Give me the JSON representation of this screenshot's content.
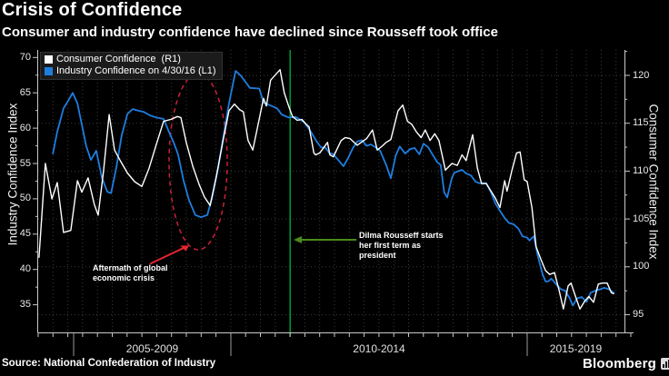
{
  "header": {
    "title": "Crisis of Confidence",
    "subtitle": "Consumer and industry confidence have declined since Rousseff took office"
  },
  "legend": {
    "items": [
      {
        "label": "Consumer Confidence  (R1)",
        "color": "#ffffff"
      },
      {
        "label": "Industry Confidence on 4/30/16 (L1)",
        "color": "#1e7ee0"
      }
    ]
  },
  "axes": {
    "left": {
      "title": "Industry Confidence Index",
      "ticks": [
        70,
        65,
        60,
        55,
        50,
        45,
        40,
        35
      ]
    },
    "right": {
      "title": "Consumer Confidence Index",
      "ticks": [
        120,
        115,
        110,
        105,
        100,
        95
      ]
    },
    "x": {
      "section_labels": [
        "2005-2009",
        "2010-2014",
        "2015-2019"
      ]
    }
  },
  "annotations": {
    "crisis": {
      "lines": [
        "Aftermath of global",
        "economic crisis"
      ],
      "color": "#ffffff",
      "arrow_color": "#e8262e",
      "ellipse_color": "#c9203a"
    },
    "rousseff": {
      "lines": [
        "Dilma Rousseff starts",
        "her first term as",
        "president"
      ],
      "color": "#ffffff",
      "arrow_color": "#4a8b1c",
      "line_color": "#00a53c"
    }
  },
  "source": "Source: National Confederation of Industry",
  "brand": {
    "name": "Bloomberg"
  },
  "chart_data": {
    "type": "line",
    "title": "Crisis of Confidence",
    "subtitle": "Consumer and industry confidence have declined since Rousseff took office",
    "x_unit": "decimal_year",
    "grid": true,
    "legend_position": "top-left",
    "left_ylim": [
      31.1,
      71.1
    ],
    "right_ylim": [
      93.1,
      122.7
    ],
    "event_marker": {
      "x": 2011.0,
      "label": "Dilma Rousseff starts her first term as president"
    },
    "series": [
      {
        "name": "Consumer Confidence (R1)",
        "axis": "right",
        "color": "#ffffff",
        "points": [
          [
            2003.9,
            101.0
          ],
          [
            2004.1,
            110.8
          ],
          [
            2004.31,
            107.1
          ],
          [
            2004.48,
            108.8
          ],
          [
            2004.68,
            103.6
          ],
          [
            2004.91,
            103.8
          ],
          [
            2005.12,
            109.0
          ],
          [
            2005.26,
            107.8
          ],
          [
            2005.46,
            109.3
          ],
          [
            2005.66,
            106.5
          ],
          [
            2005.78,
            105.4
          ],
          [
            2005.95,
            110.0
          ],
          [
            2006.13,
            115.9
          ],
          [
            2006.3,
            112.2
          ],
          [
            2006.5,
            111.0
          ],
          [
            2006.71,
            109.8
          ],
          [
            2006.94,
            108.9
          ],
          [
            2007.17,
            108.4
          ],
          [
            2007.4,
            110.3
          ],
          [
            2007.63,
            112.8
          ],
          [
            2007.86,
            115.2
          ],
          [
            2008.09,
            115.4
          ],
          [
            2008.3,
            115.7
          ],
          [
            2008.41,
            115.6
          ],
          [
            2008.58,
            113.0
          ],
          [
            2008.79,
            110.5
          ],
          [
            2008.99,
            108.6
          ],
          [
            2009.16,
            107.3
          ],
          [
            2009.34,
            106.4
          ],
          [
            2009.54,
            109.5
          ],
          [
            2009.74,
            113.0
          ],
          [
            2009.94,
            116.3
          ],
          [
            2010.06,
            117.0
          ],
          [
            2010.15,
            116.4
          ],
          [
            2010.21,
            116.2
          ],
          [
            2010.29,
            113.2
          ],
          [
            2010.37,
            112.2
          ],
          [
            2010.44,
            114.3
          ],
          [
            2010.55,
            117.6
          ],
          [
            2010.6,
            116.8
          ],
          [
            2010.67,
            119.5
          ],
          [
            2010.83,
            120.6
          ],
          [
            2010.9,
            118.2
          ],
          [
            2010.98,
            116.7
          ],
          [
            2011.04,
            115.7
          ],
          [
            2011.12,
            115.3
          ],
          [
            2011.2,
            115.4
          ],
          [
            2011.27,
            114.9
          ],
          [
            2011.32,
            114.6
          ],
          [
            2011.4,
            111.9
          ],
          [
            2011.43,
            111.7
          ],
          [
            2011.5,
            111.9
          ],
          [
            2011.63,
            113.0
          ],
          [
            2011.67,
            111.7
          ],
          [
            2011.73,
            111.5
          ],
          [
            2011.86,
            113.2
          ],
          [
            2011.93,
            113.5
          ],
          [
            2012.01,
            113.4
          ],
          [
            2012.13,
            112.7
          ],
          [
            2012.29,
            113.4
          ],
          [
            2012.39,
            114.3
          ],
          [
            2012.47,
            112.2
          ],
          [
            2012.55,
            112.6
          ],
          [
            2012.62,
            113.0
          ],
          [
            2012.7,
            113.3
          ],
          [
            2012.82,
            116.3
          ],
          [
            2012.9,
            116.9
          ],
          [
            2012.98,
            115.2
          ],
          [
            2013.05,
            114.9
          ],
          [
            2013.13,
            114.1
          ],
          [
            2013.21,
            113.5
          ],
          [
            2013.28,
            114.3
          ],
          [
            2013.36,
            113.2
          ],
          [
            2013.44,
            113.9
          ],
          [
            2013.51,
            113.2
          ],
          [
            2013.62,
            110.1
          ],
          [
            2013.73,
            110.8
          ],
          [
            2013.82,
            110.6
          ],
          [
            2013.9,
            111.7
          ],
          [
            2013.97,
            111.1
          ],
          [
            2014.08,
            113.8
          ],
          [
            2014.16,
            110.3
          ],
          [
            2014.23,
            108.7
          ],
          [
            2014.31,
            108.7
          ],
          [
            2014.46,
            107.2
          ],
          [
            2014.54,
            106.2
          ],
          [
            2014.62,
            109.0
          ],
          [
            2014.66,
            107.9
          ],
          [
            2014.74,
            110.0
          ],
          [
            2014.82,
            111.9
          ],
          [
            2014.88,
            112.0
          ],
          [
            2014.95,
            109.1
          ],
          [
            2015.0,
            108.9
          ],
          [
            2015.08,
            106.2
          ],
          [
            2015.15,
            102.1
          ],
          [
            2015.23,
            100.8
          ],
          [
            2015.31,
            99.6
          ],
          [
            2015.38,
            99.2
          ],
          [
            2015.46,
            99.4
          ],
          [
            2015.54,
            97.5
          ],
          [
            2015.61,
            95.6
          ],
          [
            2015.69,
            98.0
          ],
          [
            2015.74,
            98.3
          ],
          [
            2015.81,
            97.0
          ],
          [
            2015.89,
            95.6
          ],
          [
            2015.97,
            96.4
          ],
          [
            2016.04,
            96.9
          ],
          [
            2016.12,
            96.3
          ],
          [
            2016.2,
            98.2
          ],
          [
            2016.27,
            98.3
          ],
          [
            2016.35,
            98.3
          ],
          [
            2016.42,
            97.3
          ],
          [
            2016.46,
            97.2
          ]
        ]
      },
      {
        "name": "Industry Confidence on 4/30/16 (L1)",
        "axis": "left",
        "color": "#1e7ee0",
        "points": [
          [
            2004.34,
            56.4
          ],
          [
            2004.48,
            59.5
          ],
          [
            2004.68,
            62.8
          ],
          [
            2004.83,
            63.9
          ],
          [
            2004.97,
            65.0
          ],
          [
            2005.12,
            63.5
          ],
          [
            2005.26,
            60.5
          ],
          [
            2005.4,
            57.5
          ],
          [
            2005.55,
            55.5
          ],
          [
            2005.72,
            56.8
          ],
          [
            2005.9,
            53.0
          ],
          [
            2006.07,
            51.0
          ],
          [
            2006.19,
            50.8
          ],
          [
            2006.36,
            54.5
          ],
          [
            2006.53,
            59.0
          ],
          [
            2006.71,
            62.0
          ],
          [
            2006.88,
            62.7
          ],
          [
            2007.05,
            62.5
          ],
          [
            2007.23,
            62.3
          ],
          [
            2007.43,
            61.8
          ],
          [
            2007.63,
            61.5
          ],
          [
            2007.86,
            61.3
          ],
          [
            2008.03,
            59.5
          ],
          [
            2008.18,
            58.0
          ],
          [
            2008.32,
            56.3
          ],
          [
            2008.5,
            52.5
          ],
          [
            2008.67,
            49.8
          ],
          [
            2008.87,
            47.7
          ],
          [
            2009.05,
            47.4
          ],
          [
            2009.25,
            47.7
          ],
          [
            2009.42,
            50.5
          ],
          [
            2009.6,
            54.5
          ],
          [
            2009.77,
            59.0
          ],
          [
            2009.94,
            63.5
          ],
          [
            2010.08,
            68.1
          ],
          [
            2010.17,
            67.4
          ],
          [
            2010.32,
            65.7
          ],
          [
            2010.48,
            65.6
          ],
          [
            2010.55,
            63.6
          ],
          [
            2010.67,
            63.2
          ],
          [
            2010.78,
            62.8
          ],
          [
            2010.86,
            61.9
          ],
          [
            2010.98,
            61.5
          ],
          [
            2011.09,
            61.6
          ],
          [
            2011.17,
            61.2
          ],
          [
            2011.24,
            60.8
          ],
          [
            2011.35,
            59.5
          ],
          [
            2011.44,
            58.2
          ],
          [
            2011.52,
            57.3
          ],
          [
            2011.6,
            57.2
          ],
          [
            2011.66,
            56.5
          ],
          [
            2011.73,
            56.3
          ],
          [
            2011.81,
            55.5
          ],
          [
            2011.9,
            54.6
          ],
          [
            2011.98,
            55.8
          ],
          [
            2012.06,
            57.2
          ],
          [
            2012.13,
            58.1
          ],
          [
            2012.21,
            58.3
          ],
          [
            2012.29,
            57.5
          ],
          [
            2012.36,
            57.7
          ],
          [
            2012.44,
            57.3
          ],
          [
            2012.52,
            56.8
          ],
          [
            2012.62,
            54.8
          ],
          [
            2012.7,
            52.9
          ],
          [
            2012.78,
            56.1
          ],
          [
            2012.85,
            57.4
          ],
          [
            2012.94,
            56.4
          ],
          [
            2013.02,
            57.0
          ],
          [
            2013.1,
            57.2
          ],
          [
            2013.18,
            56.3
          ],
          [
            2013.25,
            57.8
          ],
          [
            2013.33,
            57.3
          ],
          [
            2013.4,
            56.3
          ],
          [
            2013.48,
            55.2
          ],
          [
            2013.54,
            54.8
          ],
          [
            2013.6,
            50.9
          ],
          [
            2013.65,
            50.2
          ],
          [
            2013.73,
            53.0
          ],
          [
            2013.77,
            53.7
          ],
          [
            2013.9,
            54.1
          ],
          [
            2013.97,
            53.6
          ],
          [
            2014.05,
            53.3
          ],
          [
            2014.13,
            52.4
          ],
          [
            2014.2,
            52.2
          ],
          [
            2014.31,
            52.2
          ],
          [
            2014.39,
            50.9
          ],
          [
            2014.46,
            49.4
          ],
          [
            2014.54,
            48.3
          ],
          [
            2014.62,
            47.3
          ],
          [
            2014.69,
            46.6
          ],
          [
            2014.77,
            46.4
          ],
          [
            2014.85,
            45.8
          ],
          [
            2014.92,
            44.7
          ],
          [
            2015.0,
            44.5
          ],
          [
            2015.04,
            44.1
          ],
          [
            2015.11,
            44.7
          ],
          [
            2015.18,
            41.9
          ],
          [
            2015.26,
            39.3
          ],
          [
            2015.31,
            38.3
          ],
          [
            2015.35,
            38.3
          ],
          [
            2015.41,
            38.7
          ],
          [
            2015.49,
            37.9
          ],
          [
            2015.57,
            37.2
          ],
          [
            2015.64,
            37.0
          ],
          [
            2015.72,
            35.9
          ],
          [
            2015.77,
            34.9
          ],
          [
            2015.84,
            35.9
          ],
          [
            2015.92,
            36.1
          ],
          [
            2016.0,
            35.4
          ],
          [
            2016.07,
            36.7
          ],
          [
            2016.15,
            37.0
          ],
          [
            2016.23,
            37.2
          ],
          [
            2016.3,
            37.4
          ],
          [
            2016.38,
            37.2
          ],
          [
            2016.46,
            36.7
          ]
        ]
      }
    ]
  }
}
